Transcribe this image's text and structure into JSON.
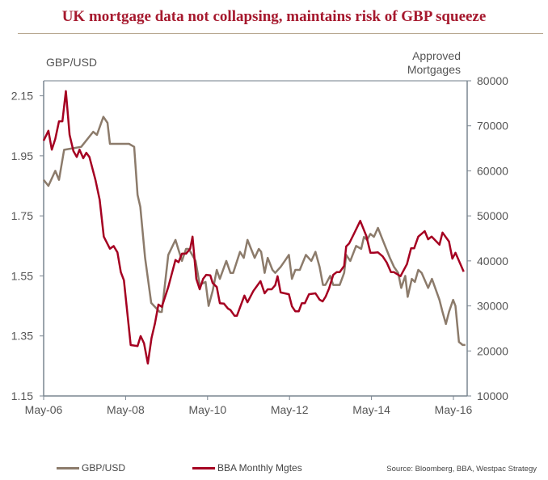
{
  "chart_data": {
    "type": "line",
    "title": "UK mortgage data not collapsing, maintains risk of GBP squeeze",
    "x_unit": "months since May-06",
    "x_ticks": [
      {
        "m": 0,
        "label": "May-06"
      },
      {
        "m": 24,
        "label": "May-08"
      },
      {
        "m": 48,
        "label": "May-10"
      },
      {
        "m": 72,
        "label": "May-12"
      },
      {
        "m": 96,
        "label": "May-14"
      },
      {
        "m": 120,
        "label": "May-16"
      }
    ],
    "xlim": [
      0,
      124
    ],
    "left_axis": {
      "label": "GBP/USD",
      "ylim": [
        1.15,
        2.2
      ],
      "ticks": [
        "1.15",
        "1.35",
        "1.55",
        "1.75",
        "1.95",
        "2.15"
      ]
    },
    "right_axis": {
      "label_line1": "Approved",
      "label_line2": "Mortgages",
      "ylim": [
        10000,
        80000
      ],
      "ticks": [
        "10000",
        "20000",
        "30000",
        "40000",
        "50000",
        "60000",
        "70000",
        "80000"
      ]
    },
    "series": [
      {
        "name": "GBP/USD",
        "axis": "left",
        "color": "#8c7b6b",
        "points": [
          [
            0,
            1.87
          ],
          [
            1.4,
            1.85
          ],
          [
            3.4,
            1.9
          ],
          [
            4.5,
            1.87
          ],
          [
            6,
            1.97
          ],
          [
            11,
            1.98
          ],
          [
            14.5,
            2.03
          ],
          [
            15.6,
            2.02
          ],
          [
            17.5,
            2.08
          ],
          [
            18.7,
            2.06
          ],
          [
            19.4,
            1.99
          ],
          [
            25,
            1.99
          ],
          [
            26.5,
            1.98
          ],
          [
            27.5,
            1.82
          ],
          [
            28.3,
            1.78
          ],
          [
            29.7,
            1.61
          ],
          [
            31.5,
            1.46
          ],
          [
            34,
            1.43
          ],
          [
            34.6,
            1.43
          ],
          [
            36.5,
            1.62
          ],
          [
            38.6,
            1.67
          ],
          [
            40.5,
            1.6
          ],
          [
            41.7,
            1.64
          ],
          [
            42.5,
            1.64
          ],
          [
            44.5,
            1.6
          ],
          [
            45.7,
            1.52
          ],
          [
            47.4,
            1.53
          ],
          [
            48.3,
            1.45
          ],
          [
            49.5,
            1.5
          ],
          [
            50.7,
            1.57
          ],
          [
            51.6,
            1.54
          ],
          [
            53.5,
            1.6
          ],
          [
            54.7,
            1.56
          ],
          [
            55.5,
            1.56
          ],
          [
            57.5,
            1.63
          ],
          [
            58.6,
            1.61
          ],
          [
            59.7,
            1.67
          ],
          [
            61.8,
            1.61
          ],
          [
            63,
            1.64
          ],
          [
            63.7,
            1.63
          ],
          [
            64.7,
            1.56
          ],
          [
            65.6,
            1.61
          ],
          [
            67,
            1.57
          ],
          [
            67.8,
            1.56
          ],
          [
            69.4,
            1.58
          ],
          [
            70.6,
            1.6
          ],
          [
            71.8,
            1.62
          ],
          [
            72.7,
            1.54
          ],
          [
            73.7,
            1.57
          ],
          [
            75,
            1.57
          ],
          [
            76.8,
            1.62
          ],
          [
            78.4,
            1.6
          ],
          [
            79.6,
            1.63
          ],
          [
            80.8,
            1.58
          ],
          [
            81.8,
            1.52
          ],
          [
            82.5,
            1.52
          ],
          [
            83.9,
            1.55
          ],
          [
            84.8,
            1.52
          ],
          [
            86.7,
            1.52
          ],
          [
            88,
            1.56
          ],
          [
            88.6,
            1.62
          ],
          [
            89.8,
            1.6
          ],
          [
            91.5,
            1.65
          ],
          [
            93,
            1.64
          ],
          [
            93.8,
            1.68
          ],
          [
            94.7,
            1.67
          ],
          [
            95.7,
            1.69
          ],
          [
            96.7,
            1.68
          ],
          [
            97.9,
            1.71
          ],
          [
            99.3,
            1.67
          ],
          [
            101.4,
            1.61
          ],
          [
            102.6,
            1.58
          ],
          [
            103.8,
            1.56
          ],
          [
            104.7,
            1.51
          ],
          [
            105.9,
            1.55
          ],
          [
            106.6,
            1.48
          ],
          [
            107.8,
            1.54
          ],
          [
            108.7,
            1.53
          ],
          [
            109.7,
            1.57
          ],
          [
            110.7,
            1.56
          ],
          [
            112.6,
            1.51
          ],
          [
            113.7,
            1.54
          ],
          [
            115.9,
            1.47
          ],
          [
            116.8,
            1.43
          ],
          [
            117.8,
            1.39
          ],
          [
            118.7,
            1.43
          ],
          [
            119.9,
            1.47
          ],
          [
            120.6,
            1.45
          ],
          [
            121.6,
            1.33
          ],
          [
            122.7,
            1.32
          ],
          [
            123.5,
            1.32
          ]
        ]
      },
      {
        "name": "BBA Monthly Mgtes",
        "axis": "right",
        "color": "#a50021",
        "points": [
          [
            0,
            66700
          ],
          [
            1.4,
            68900
          ],
          [
            2.4,
            64700
          ],
          [
            3.4,
            67100
          ],
          [
            4.5,
            71000
          ],
          [
            5.5,
            71000
          ],
          [
            6.5,
            77700
          ],
          [
            7.6,
            68000
          ],
          [
            8.7,
            64400
          ],
          [
            9.7,
            63100
          ],
          [
            10.5,
            64700
          ],
          [
            11.6,
            62800
          ],
          [
            12.5,
            64000
          ],
          [
            13.4,
            63100
          ],
          [
            15.2,
            57900
          ],
          [
            16.4,
            53600
          ],
          [
            17.6,
            45400
          ],
          [
            19.4,
            42700
          ],
          [
            20.5,
            43300
          ],
          [
            21.6,
            41900
          ],
          [
            22.6,
            37500
          ],
          [
            23.5,
            35700
          ],
          [
            25.5,
            21300
          ],
          [
            27.5,
            21100
          ],
          [
            28.4,
            23300
          ],
          [
            29.4,
            21700
          ],
          [
            30.5,
            17200
          ],
          [
            31.6,
            22900
          ],
          [
            32.6,
            26100
          ],
          [
            33.6,
            30300
          ],
          [
            34.6,
            29800
          ],
          [
            36.5,
            34200
          ],
          [
            38.6,
            40200
          ],
          [
            39.5,
            39700
          ],
          [
            40.5,
            41600
          ],
          [
            41.7,
            41600
          ],
          [
            42.9,
            42700
          ],
          [
            43.6,
            45400
          ],
          [
            44.7,
            36000
          ],
          [
            45.7,
            33700
          ],
          [
            46.7,
            36000
          ],
          [
            47.6,
            36900
          ],
          [
            48.8,
            36800
          ],
          [
            49.5,
            35100
          ],
          [
            50.7,
            34200
          ],
          [
            51.6,
            30600
          ],
          [
            52.8,
            30500
          ],
          [
            54,
            29400
          ],
          [
            54.7,
            29100
          ],
          [
            55.9,
            27800
          ],
          [
            56.6,
            27800
          ],
          [
            58.8,
            32300
          ],
          [
            59.7,
            30800
          ],
          [
            61.4,
            33300
          ],
          [
            63.5,
            35500
          ],
          [
            64.7,
            32800
          ],
          [
            65.6,
            33700
          ],
          [
            66.8,
            33700
          ],
          [
            67.8,
            34600
          ],
          [
            68.5,
            36600
          ],
          [
            69.4,
            33000
          ],
          [
            70.6,
            32800
          ],
          [
            71.8,
            32600
          ],
          [
            72.7,
            29900
          ],
          [
            73.7,
            28800
          ],
          [
            74.7,
            28800
          ],
          [
            75.6,
            30600
          ],
          [
            76.5,
            30600
          ],
          [
            77.7,
            32600
          ],
          [
            79.6,
            32800
          ],
          [
            80.8,
            31400
          ],
          [
            81.7,
            31000
          ],
          [
            82.6,
            32100
          ],
          [
            83.6,
            33900
          ],
          [
            84.8,
            36900
          ],
          [
            85.8,
            37500
          ],
          [
            86.7,
            37500
          ],
          [
            88,
            38900
          ],
          [
            88.6,
            43200
          ],
          [
            89.5,
            43900
          ],
          [
            90.8,
            45900
          ],
          [
            92.7,
            48900
          ],
          [
            94.5,
            45500
          ],
          [
            95.7,
            41800
          ],
          [
            96.7,
            41800
          ],
          [
            97.9,
            41900
          ],
          [
            99.3,
            41000
          ],
          [
            100.5,
            39600
          ],
          [
            101.7,
            37500
          ],
          [
            102.6,
            37500
          ],
          [
            104.5,
            36600
          ],
          [
            106.4,
            39300
          ],
          [
            107.6,
            42800
          ],
          [
            108.5,
            42800
          ],
          [
            109.7,
            45400
          ],
          [
            111.6,
            46600
          ],
          [
            112.6,
            44800
          ],
          [
            113.6,
            45400
          ],
          [
            115.9,
            43600
          ],
          [
            116.8,
            46300
          ],
          [
            118.7,
            44300
          ],
          [
            119.7,
            40500
          ],
          [
            120.6,
            41800
          ],
          [
            123,
            37600
          ]
        ]
      }
    ],
    "legend_position": "bottom",
    "source": "Source: Bloomberg, BBA, Westpac Strategy",
    "grid": false
  }
}
